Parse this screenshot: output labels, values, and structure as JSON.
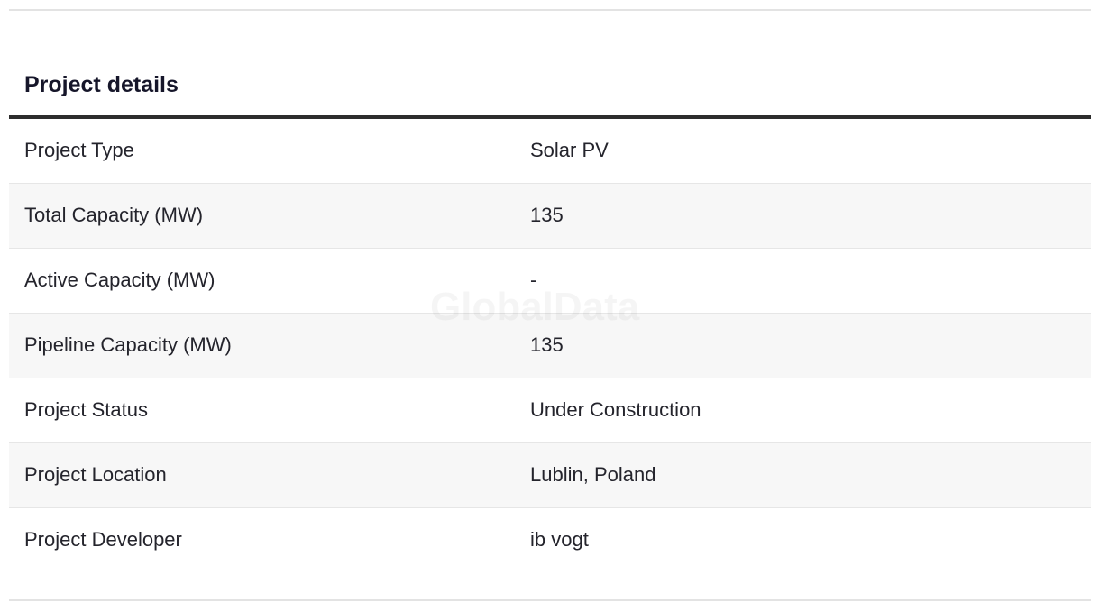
{
  "section": {
    "title": "Project details"
  },
  "rows": [
    {
      "label": "Project Type",
      "value": "Solar PV"
    },
    {
      "label": "Total Capacity (MW)",
      "value": "135"
    },
    {
      "label": "Active Capacity (MW)",
      "value": "-"
    },
    {
      "label": "Pipeline Capacity (MW)",
      "value": "135"
    },
    {
      "label": "Project Status",
      "value": "Under Construction"
    },
    {
      "label": "Project Location",
      "value": "Lublin, Poland"
    },
    {
      "label": "Project Developer",
      "value": "ib vogt"
    }
  ],
  "watermark": "GlobalData"
}
